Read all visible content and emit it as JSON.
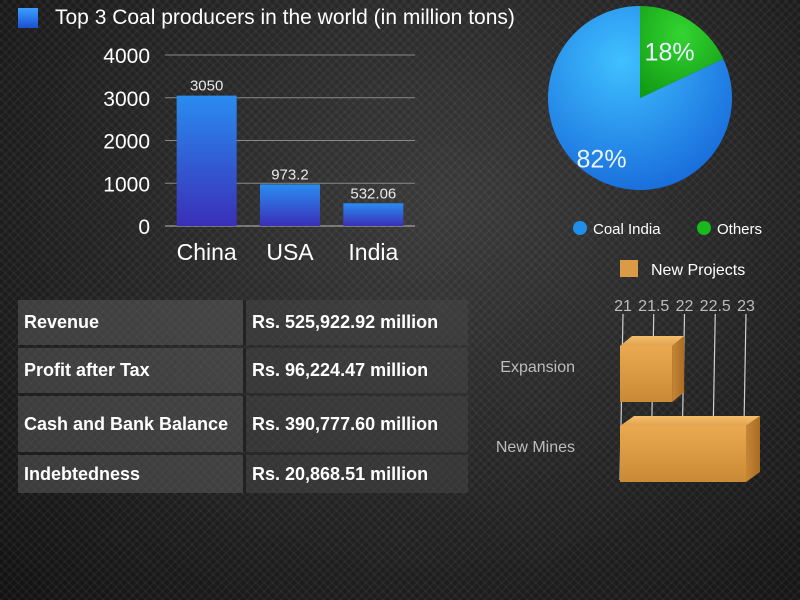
{
  "chart_data": [
    {
      "type": "bar",
      "title": "Top 3 Coal producers in the world (in million tons)",
      "categories": [
        "China",
        "USA",
        "India"
      ],
      "values": [
        3050,
        973.2,
        532.06
      ],
      "data_labels": [
        "3050",
        "973.2",
        "532.06"
      ],
      "yticks": [
        "0",
        "1000",
        "2000",
        "3000",
        "4000"
      ],
      "ylim": [
        0,
        4000
      ],
      "grid": true,
      "color": "#2f6de0"
    },
    {
      "type": "pie",
      "slices": [
        {
          "name": "Coal India",
          "value": 82,
          "label": "82%",
          "color": "#1e90ea"
        },
        {
          "name": "Others",
          "value": 18,
          "label": "18%",
          "color": "#19b81c"
        }
      ],
      "legend": "bottom"
    },
    {
      "type": "bar",
      "orientation": "horizontal",
      "categories": [
        "Expansion",
        "New Mines"
      ],
      "series": [
        {
          "name": "New Projects",
          "values": [
            21.8,
            23.0
          ]
        }
      ],
      "xticks": [
        "21",
        "21.5",
        "22",
        "22.5",
        "23"
      ],
      "xlim": [
        21,
        23
      ],
      "legend": "top",
      "color": "#d9a04a"
    }
  ],
  "table": {
    "rows": [
      {
        "label": "Revenue",
        "value": "Rs. 525,922.92 million"
      },
      {
        "label": "Profit after Tax",
        "value": "Rs. 96,224.47 million"
      },
      {
        "label": "Cash and Bank Balance",
        "value": "Rs. 390,777.60 million"
      },
      {
        "label": "Indebtedness",
        "value": "Rs. 20,868.51 million"
      }
    ]
  }
}
